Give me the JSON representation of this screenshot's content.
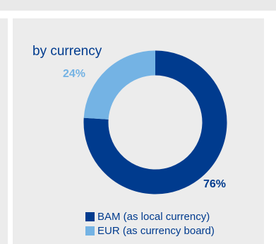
{
  "chart_data": {
    "type": "pie",
    "title": "by currency",
    "categories": [
      "BAM (as local currency)",
      "EUR (as currency board)"
    ],
    "values": [
      76,
      24
    ],
    "value_labels": [
      "76%",
      "24%"
    ],
    "colors": [
      "#003b8e",
      "#74b3e4"
    ],
    "donut": true,
    "legend_position": "bottom"
  }
}
